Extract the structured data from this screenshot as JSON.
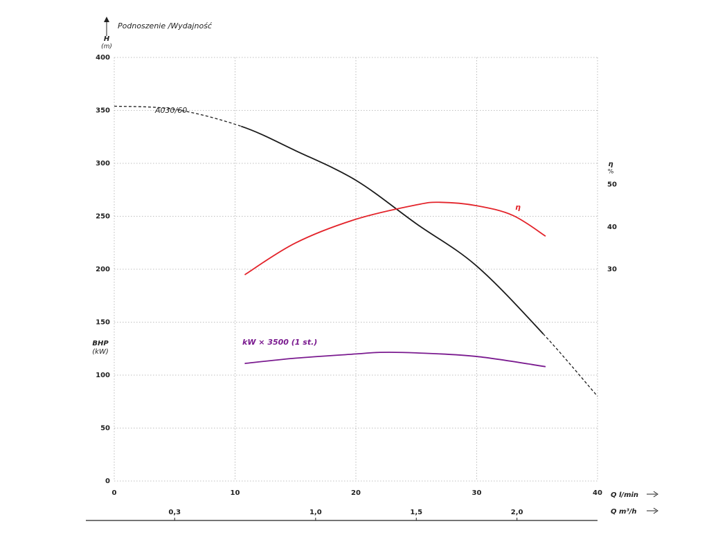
{
  "chart_data": {
    "type": "line",
    "title": "Podnoszenie /Wydajność",
    "y_label": "H",
    "y_unit": "(m)",
    "y2_label": "η",
    "y2_unit": "%",
    "bhp_label": "BHP",
    "bhp_unit": "(kW)",
    "x_label": "Q l/min",
    "x2_label": "Q m³/h",
    "xlim": [
      0,
      40
    ],
    "xticks": [
      0,
      10,
      20,
      30,
      40
    ],
    "x2lim": [
      0,
      2.4
    ],
    "x2ticks": [
      {
        "value": 0.3,
        "label": "0,3"
      },
      {
        "value": 1.0,
        "label": "1,0"
      },
      {
        "value": 1.5,
        "label": "1,5"
      },
      {
        "value": 2.0,
        "label": "2,0"
      }
    ],
    "ylim": [
      0,
      400
    ],
    "yticks": [
      0,
      50,
      100,
      150,
      200,
      250,
      300,
      350,
      400
    ],
    "y2lim": [
      -20,
      80
    ],
    "y2ticks": [
      30,
      40,
      50
    ],
    "grid": true,
    "series": [
      {
        "name": "A030/60",
        "color": "#1a1a1a",
        "x": [
          0,
          5,
          10.5,
          15,
          20,
          25,
          30,
          35.5,
          40
        ],
        "values": [
          354,
          351,
          335,
          312,
          284,
          243,
          203,
          139,
          80
        ],
        "dashed": [
          true,
          true,
          false,
          false,
          false,
          false,
          false,
          true
        ]
      },
      {
        "name": "η",
        "color": "#e3232a",
        "axis": "y2",
        "x": [
          10.8,
          15,
          20,
          25,
          27,
          30,
          33,
          35.7
        ],
        "values": [
          28.7,
          36.2,
          41.8,
          45.2,
          45.8,
          45,
          42.7,
          37.8
        ]
      },
      {
        "name": "kW × 3500 (1 st.)",
        "color": "#7a1a8f",
        "x": [
          10.8,
          15,
          20,
          22,
          25,
          30,
          35.7
        ],
        "values": [
          111,
          116,
          120,
          121.5,
          121,
          117.6,
          108
        ]
      }
    ]
  }
}
